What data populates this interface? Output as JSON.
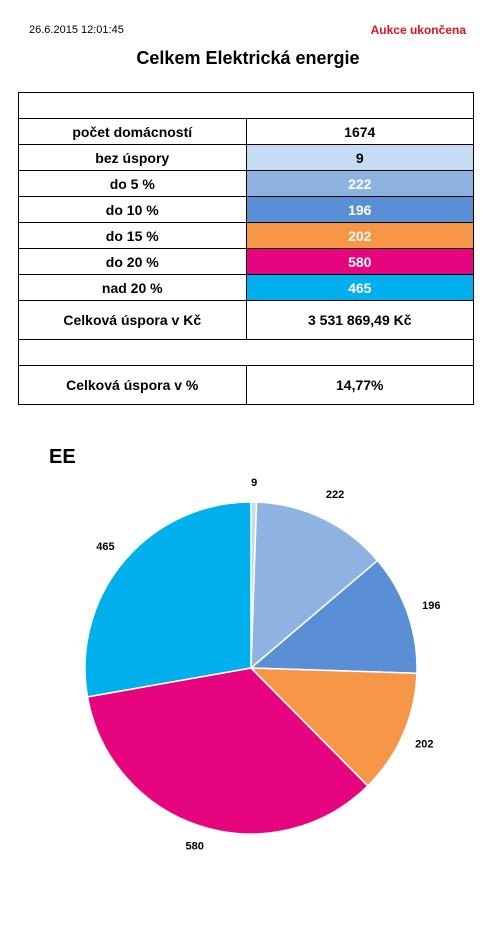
{
  "header": {
    "timestamp": "26.6.2015 12:01:45",
    "status": "Aukce ukončena",
    "title": "Celkem Elektrická energie"
  },
  "table": {
    "rows": [
      {
        "label": "počet domácností",
        "value": "1674",
        "bg": "#ffffff",
        "fg": "#000000"
      },
      {
        "label": "bez úspory",
        "value": "9",
        "bg": "#c5daf3",
        "fg": "#000000"
      },
      {
        "label": "do 5 %",
        "value": "222",
        "bg": "#8eb2e2",
        "fg": "#ffffff"
      },
      {
        "label": "do 10 %",
        "value": "196",
        "bg": "#5a8fd6",
        "fg": "#ffffff"
      },
      {
        "label": "do 15 %",
        "value": "202",
        "bg": "#f79646",
        "fg": "#ffffff"
      },
      {
        "label": "do 20 %",
        "value": "580",
        "bg": "#e6057f",
        "fg": "#ffffff"
      },
      {
        "label": "nad 20 %",
        "value": "465",
        "bg": "#00b0ed",
        "fg": "#ffffff"
      }
    ],
    "savings_czk": {
      "label": "Celková úspora v Kč",
      "value": "3 531 869,49 Kč"
    },
    "savings_pct": {
      "label": "Celková úspora v %",
      "value": "14,77%"
    }
  },
  "chart_data": {
    "type": "pie",
    "title": "EE",
    "categories": [
      "bez úspory",
      "do 5 %",
      "do 10 %",
      "do 15 %",
      "do 20 %",
      "nad 20 %"
    ],
    "values": [
      9,
      222,
      196,
      202,
      580,
      465
    ],
    "data_labels": [
      "9",
      "222",
      "196",
      "202",
      "580",
      "465"
    ],
    "colors": [
      "#c5daf3",
      "#8eb2e2",
      "#5a8fd6",
      "#f79646",
      "#e6057f",
      "#00b0ed"
    ],
    "start": "top, clockwise",
    "legend": "none"
  }
}
